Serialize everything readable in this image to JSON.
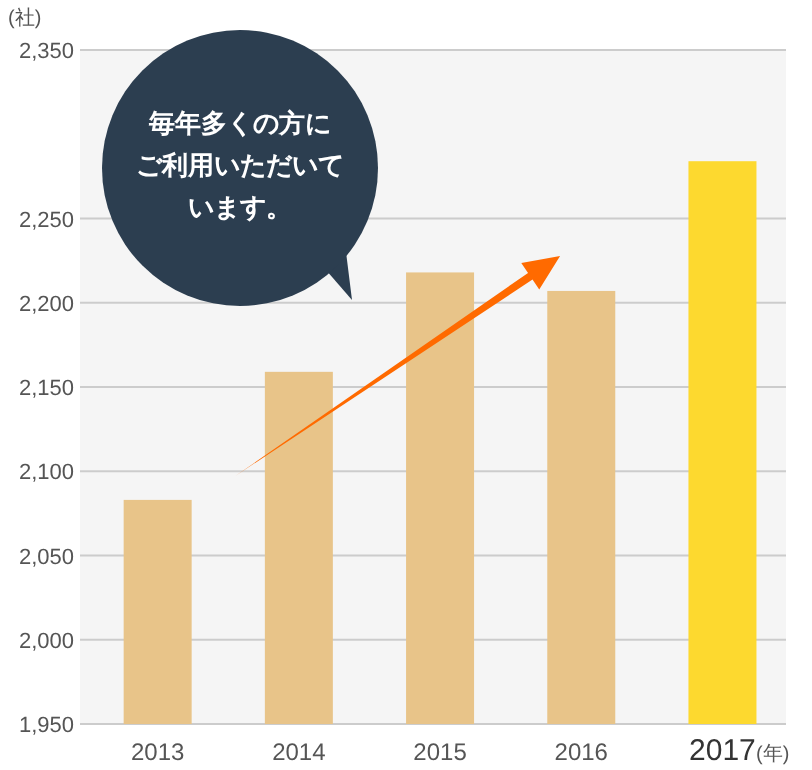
{
  "chart_data": {
    "type": "bar",
    "ylabel": "(社)",
    "xlabel": "(年)",
    "categories": [
      "2013",
      "2014",
      "2015",
      "2016",
      "2017"
    ],
    "values": [
      2083,
      2159,
      2218,
      2207,
      2284
    ],
    "colors": [
      "#e8c489",
      "#e8c489",
      "#e8c489",
      "#e8c489",
      "#fdd92f"
    ],
    "ylim": [
      1950,
      2350
    ],
    "yticks": [
      {
        "value": 1950,
        "label": "1,950"
      },
      {
        "value": 2000,
        "label": "2,000"
      },
      {
        "value": 2050,
        "label": "2,050"
      },
      {
        "value": 2100,
        "label": "2,100"
      },
      {
        "value": 2150,
        "label": "2,150"
      },
      {
        "value": 2200,
        "label": "2,200"
      },
      {
        "value": 2250,
        "label": "2,250"
      },
      {
        "value": 2350,
        "label": "2,350"
      }
    ],
    "grid": "y",
    "annotations": [
      "毎年多くの方にご利用いただいています。"
    ]
  }
}
